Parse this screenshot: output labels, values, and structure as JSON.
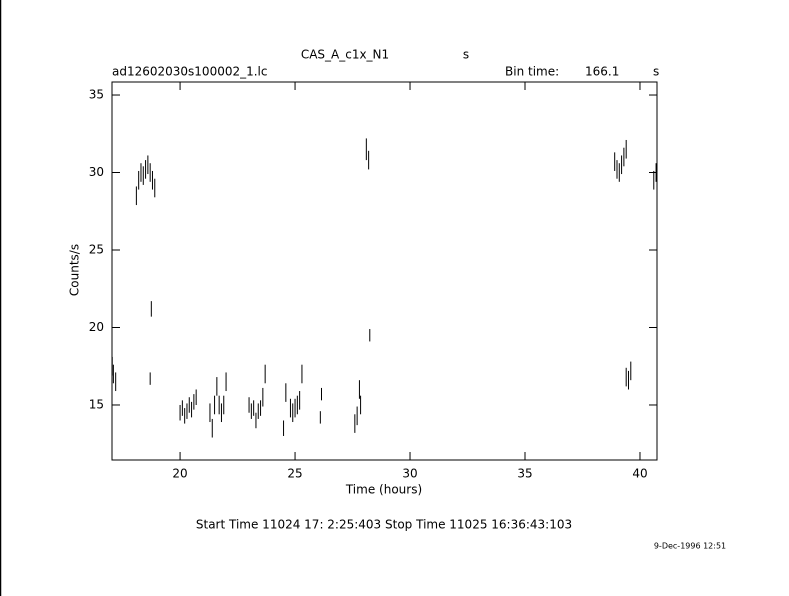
{
  "chart_data": {
    "type": "scatter",
    "title": "CAS_A_c1x_N1",
    "title_unit": "s",
    "file_name": "ad12602030s100002_1.lc",
    "bin_time_label": "Bin time:",
    "bin_time": "166.1",
    "bin_time_unit": "s",
    "x_label": "Time (hours)",
    "y_label": "Counts/s",
    "time_range": "Start Time 11024 17: 2:25:403    Stop Time 11025 16:36:43:103",
    "date": "9-Dec-1996 12:51",
    "color": "#000000",
    "xlim": [
      17.04,
      40.74
    ],
    "ylim": [
      11.45,
      35.84
    ],
    "xticks": [
      20,
      25,
      30,
      35,
      40
    ],
    "yticks": [
      15,
      20,
      25,
      30,
      35
    ],
    "x": [
      17.05,
      17.1,
      17.2,
      18.1,
      18.2,
      18.3,
      18.4,
      18.5,
      18.6,
      18.7,
      18.8,
      18.9,
      18.75,
      18.7,
      20.0,
      20.1,
      20.2,
      20.3,
      20.4,
      20.5,
      20.6,
      20.7,
      21.3,
      21.4,
      21.5,
      21.6,
      21.7,
      21.8,
      21.9,
      22.0,
      23.0,
      23.1,
      23.2,
      23.3,
      23.4,
      23.5,
      23.6,
      23.7,
      24.5,
      24.6,
      24.8,
      24.9,
      25.0,
      25.1,
      25.2,
      25.3,
      26.1,
      26.15,
      27.6,
      27.7,
      27.8,
      27.85,
      28.1,
      28.2,
      28.25,
      38.9,
      39.0,
      39.1,
      39.2,
      39.3,
      39.4,
      39.4,
      39.5,
      39.6,
      40.6,
      40.7
    ],
    "values": [
      17.5,
      17.0,
      16.5,
      28.5,
      29.5,
      30.0,
      29.8,
      30.2,
      30.5,
      30.0,
      29.5,
      29.0,
      21.2,
      16.7,
      14.5,
      14.8,
      14.3,
      14.6,
      15.0,
      14.7,
      15.2,
      15.5,
      14.5,
      13.5,
      15.0,
      16.2,
      15.0,
      14.5,
      15.0,
      16.5,
      15.0,
      14.6,
      14.8,
      14.0,
      14.6,
      14.8,
      15.5,
      17.0,
      13.5,
      15.8,
      14.8,
      14.5,
      14.8,
      15.0,
      15.3,
      17.0,
      14.2,
      15.7,
      13.8,
      14.3,
      16.0,
      15.0,
      31.5,
      30.8,
      19.5,
      30.7,
      30.2,
      30.0,
      30.5,
      31.0,
      31.5,
      16.8,
      16.6,
      17.2,
      29.5,
      30.0
    ],
    "errors": [
      0.6,
      0.6,
      0.6,
      0.6,
      0.6,
      0.6,
      0.6,
      0.6,
      0.6,
      0.6,
      0.6,
      0.6,
      0.5,
      0.4,
      0.5,
      0.5,
      0.5,
      0.5,
      0.5,
      0.5,
      0.5,
      0.5,
      0.6,
      0.6,
      0.6,
      0.6,
      0.6,
      0.6,
      0.6,
      0.6,
      0.5,
      0.5,
      0.5,
      0.5,
      0.5,
      0.5,
      0.6,
      0.6,
      0.5,
      0.6,
      0.6,
      0.6,
      0.6,
      0.6,
      0.6,
      0.6,
      0.4,
      0.4,
      0.6,
      0.6,
      0.6,
      0.6,
      0.7,
      0.6,
      0.4,
      0.6,
      0.6,
      0.6,
      0.6,
      0.6,
      0.6,
      0.6,
      0.6,
      0.6,
      0.6,
      0.6
    ]
  }
}
